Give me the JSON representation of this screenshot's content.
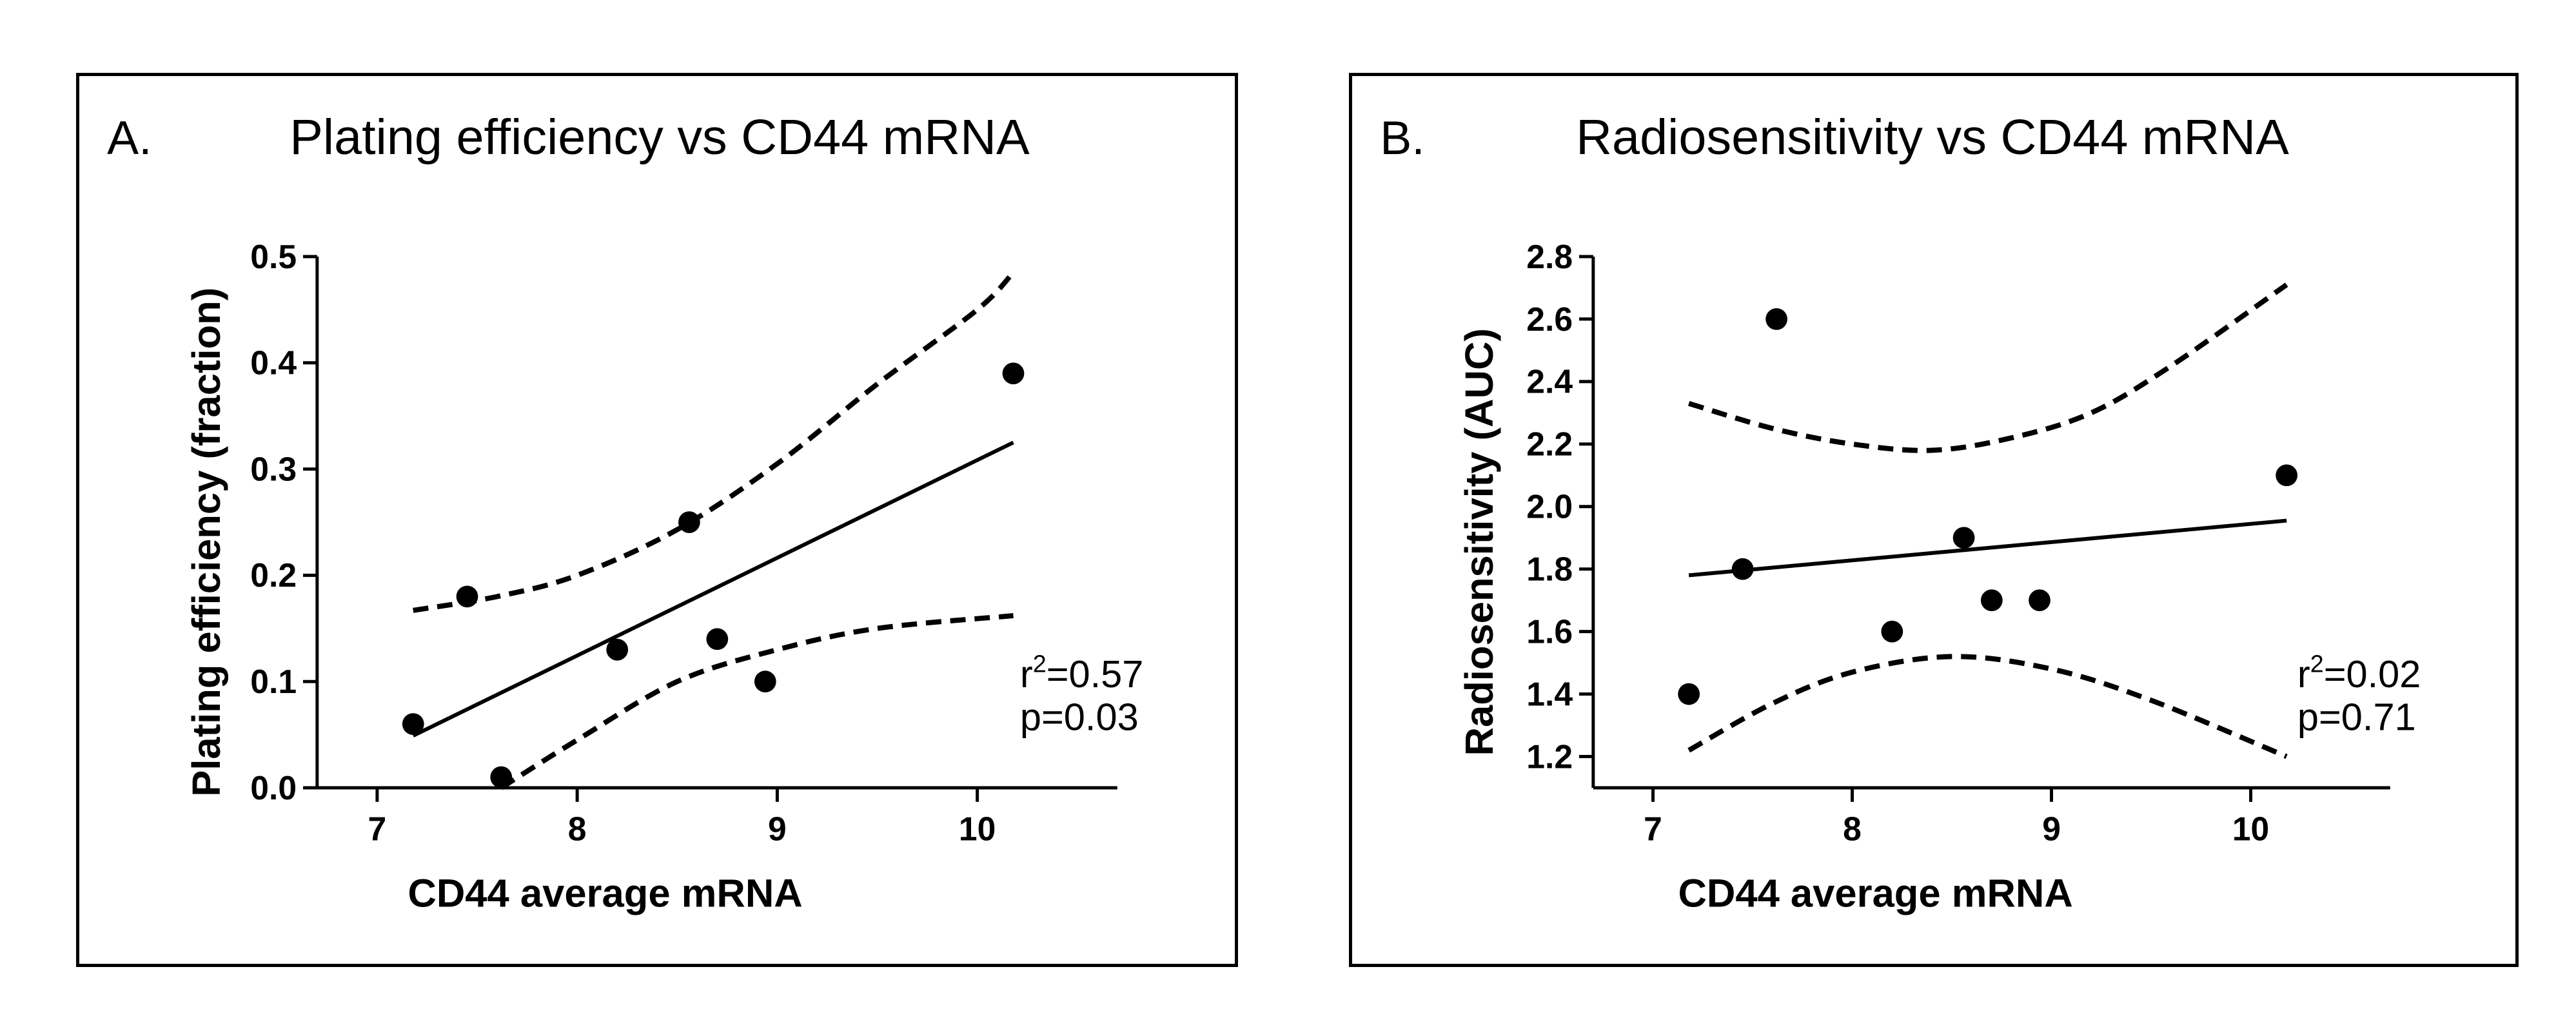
{
  "chart_data": [
    {
      "type": "scatter",
      "panel_letter": "A.",
      "title": "Plating efficiency vs CD44 mRNA",
      "xlabel": "CD44 average mRNA",
      "ylabel": "Plating efficiency (fraction)",
      "xlim": [
        6.7,
        10.7
      ],
      "ylim": [
        0.0,
        0.5
      ],
      "xticks": [
        7,
        8,
        9,
        10
      ],
      "yticks": [
        0.0,
        0.1,
        0.2,
        0.3,
        0.4,
        0.5
      ],
      "xtick_labels": [
        "7",
        "8",
        "9",
        "10"
      ],
      "ytick_labels": [
        "0.0",
        "0.1",
        "0.2",
        "0.3",
        "0.4",
        "0.5"
      ],
      "points": [
        {
          "x": 7.18,
          "y": 0.06
        },
        {
          "x": 7.45,
          "y": 0.18
        },
        {
          "x": 7.62,
          "y": 0.01
        },
        {
          "x": 8.2,
          "y": 0.13
        },
        {
          "x": 8.56,
          "y": 0.25
        },
        {
          "x": 8.7,
          "y": 0.14
        },
        {
          "x": 8.94,
          "y": 0.1
        },
        {
          "x": 10.18,
          "y": 0.39
        }
      ],
      "fit_line": [
        {
          "x": 7.18,
          "y": 0.049
        },
        {
          "x": 10.18,
          "y": 0.325
        }
      ],
      "ci_upper": [
        {
          "x": 7.18,
          "y": 0.167
        },
        {
          "x": 7.6,
          "y": 0.18
        },
        {
          "x": 8.0,
          "y": 0.2
        },
        {
          "x": 8.5,
          "y": 0.243
        },
        {
          "x": 9.0,
          "y": 0.305
        },
        {
          "x": 9.5,
          "y": 0.38
        },
        {
          "x": 10.0,
          "y": 0.45
        },
        {
          "x": 10.18,
          "y": 0.485
        }
      ],
      "ci_lower": [
        {
          "x": 7.62,
          "y": 0.0
        },
        {
          "x": 8.0,
          "y": 0.045
        },
        {
          "x": 8.5,
          "y": 0.1
        },
        {
          "x": 9.0,
          "y": 0.13
        },
        {
          "x": 9.5,
          "y": 0.15
        },
        {
          "x": 10.18,
          "y": 0.162
        }
      ],
      "stats": {
        "r_prefix": "r",
        "r_sup": "2",
        "r_value": "=0.57",
        "p_text": "p=0.03"
      },
      "grid": false,
      "legend": "none"
    },
    {
      "type": "scatter",
      "panel_letter": "B.",
      "title": "Radiosensitivity vs CD44 mRNA",
      "xlabel": "CD44 average mRNA",
      "ylabel": "Radiosensitivity (AUC)",
      "xlim": [
        6.7,
        10.7
      ],
      "ylim": [
        1.1,
        2.8
      ],
      "xticks": [
        7,
        8,
        9,
        10
      ],
      "yticks": [
        1.2,
        1.4,
        1.6,
        1.8,
        2.0,
        2.2,
        2.4,
        2.6,
        2.8
      ],
      "xtick_labels": [
        "7",
        "8",
        "9",
        "10"
      ],
      "ytick_labels": [
        "1.2",
        "1.4",
        "1.6",
        "1.8",
        "2.0",
        "2.2",
        "2.4",
        "2.6",
        "2.8"
      ],
      "points": [
        {
          "x": 7.18,
          "y": 1.4
        },
        {
          "x": 7.45,
          "y": 1.8
        },
        {
          "x": 7.62,
          "y": 2.6
        },
        {
          "x": 8.2,
          "y": 1.6
        },
        {
          "x": 8.56,
          "y": 1.9
        },
        {
          "x": 8.7,
          "y": 1.7
        },
        {
          "x": 8.94,
          "y": 1.7
        },
        {
          "x": 10.18,
          "y": 2.1
        }
      ],
      "fit_line": [
        {
          "x": 7.18,
          "y": 1.78
        },
        {
          "x": 10.18,
          "y": 1.955
        }
      ],
      "ci_upper": [
        {
          "x": 7.18,
          "y": 2.33
        },
        {
          "x": 7.6,
          "y": 2.25
        },
        {
          "x": 8.0,
          "y": 2.2
        },
        {
          "x": 8.4,
          "y": 2.18
        },
        {
          "x": 8.8,
          "y": 2.22
        },
        {
          "x": 9.2,
          "y": 2.3
        },
        {
          "x": 9.6,
          "y": 2.45
        },
        {
          "x": 10.18,
          "y": 2.71
        }
      ],
      "ci_lower": [
        {
          "x": 7.18,
          "y": 1.22
        },
        {
          "x": 7.6,
          "y": 1.37
        },
        {
          "x": 8.0,
          "y": 1.47
        },
        {
          "x": 8.5,
          "y": 1.52
        },
        {
          "x": 9.0,
          "y": 1.48
        },
        {
          "x": 9.5,
          "y": 1.38
        },
        {
          "x": 10.18,
          "y": 1.2
        }
      ],
      "stats": {
        "r_prefix": "r",
        "r_sup": "2",
        "r_value": "=0.02",
        "p_text": "p=0.71"
      },
      "grid": false,
      "legend": "none"
    }
  ]
}
